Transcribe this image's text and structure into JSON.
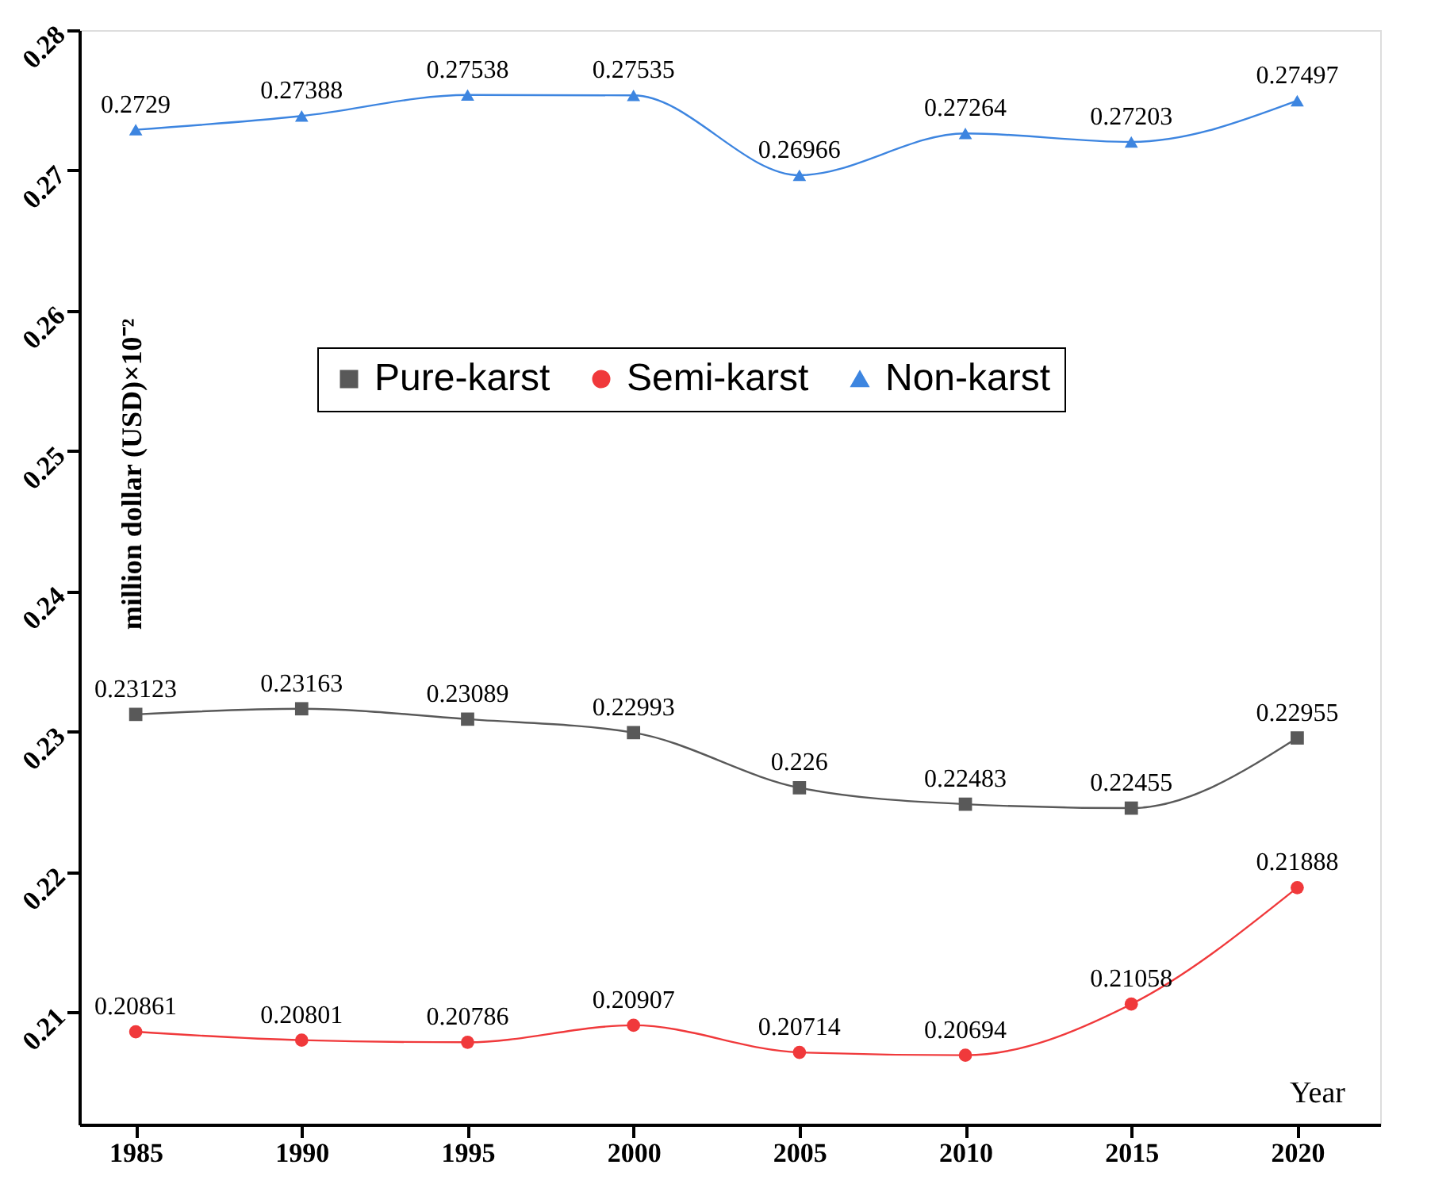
{
  "chart_data": {
    "type": "line",
    "xlabel": "Year",
    "ylabel": "million dollar (USD)×10⁻²",
    "x": [
      1985,
      1990,
      1995,
      2000,
      2005,
      2010,
      2015,
      2020
    ],
    "series": [
      {
        "name": "Pure-karst",
        "color": "#595959",
        "marker": "square",
        "values": [
          0.23123,
          0.23163,
          0.23089,
          0.22993,
          0.226,
          0.22483,
          0.22455,
          0.22955
        ]
      },
      {
        "name": "Semi-karst",
        "color": "#f0393b",
        "marker": "circle",
        "values": [
          0.20861,
          0.20801,
          0.20786,
          0.20907,
          0.20714,
          0.20694,
          0.21058,
          0.21888
        ]
      },
      {
        "name": "Non-karst",
        "color": "#3d85e0",
        "marker": "triangle",
        "values": [
          0.2729,
          0.27388,
          0.27538,
          0.27535,
          0.26966,
          0.27264,
          0.27203,
          0.27497
        ]
      }
    ],
    "xlim": [
      1983.3,
      2022.5
    ],
    "xticks": [
      1985,
      1990,
      1995,
      2000,
      2005,
      2010,
      2015,
      2020
    ],
    "ylim": [
      0.202,
      0.28
    ],
    "yticks": [
      0.21,
      0.22,
      0.23,
      0.24,
      0.25,
      0.26,
      0.27,
      0.28
    ],
    "data_labels": true,
    "legend": "top left",
    "grid": false
  }
}
